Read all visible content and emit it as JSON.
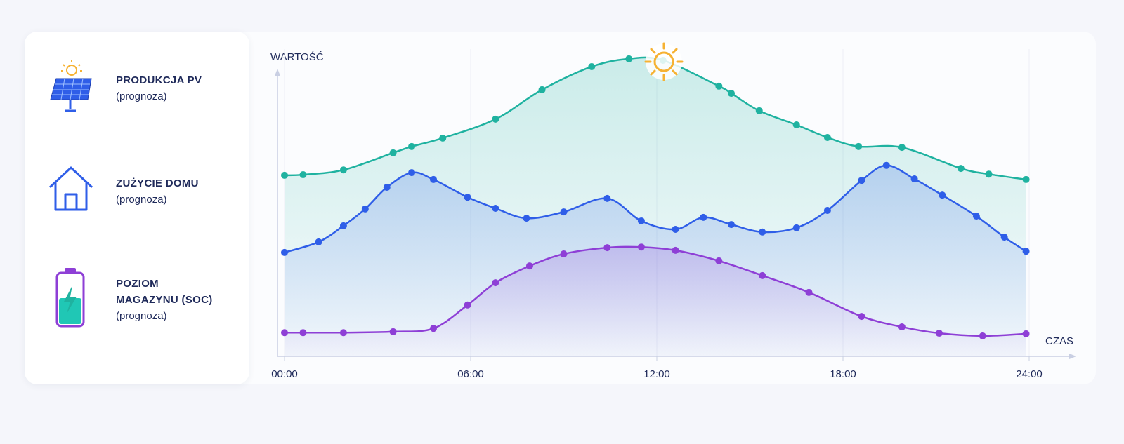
{
  "chart_data": {
    "type": "line",
    "ylabel": "WARTOŚĆ",
    "xlabel": "CZAS",
    "xlim": [
      0,
      24
    ],
    "ylim": [
      0,
      100
    ],
    "xticks": [
      {
        "value": 0,
        "label": "00:00"
      },
      {
        "value": 6,
        "label": "06:00"
      },
      {
        "value": 12,
        "label": "12:00"
      },
      {
        "value": 18,
        "label": "18:00"
      },
      {
        "value": 24,
        "label": "24:00"
      }
    ],
    "grid": true,
    "series": [
      {
        "name": "PRODUKCJA PV",
        "note": "(prognoza)",
        "color": "#1fb2a0",
        "x": [
          0,
          0.6,
          1.9,
          3.5,
          4.1,
          5.1,
          6.8,
          8.3,
          9.9,
          11.1,
          12.2,
          14.0,
          14.4,
          15.3,
          16.5,
          17.5,
          18.5,
          19.9,
          21.8,
          22.7,
          23.9
        ],
        "values": [
          60.3,
          60.5,
          62.1,
          67.8,
          69.9,
          72.7,
          79.0,
          88.8,
          96.5,
          99.1,
          98.6,
          90.0,
          87.6,
          81.8,
          77.1,
          72.9,
          69.9,
          69.6,
          62.6,
          60.7,
          58.9
        ]
      },
      {
        "name": "ZUŻYCIE DOMU",
        "note": "(prognoza)",
        "color": "#2f5ee8",
        "x": [
          0,
          1.1,
          1.9,
          2.6,
          3.3,
          4.1,
          4.8,
          5.9,
          6.8,
          7.8,
          9.0,
          10.4,
          11.5,
          12.6,
          13.5,
          14.4,
          15.4,
          16.5,
          17.5,
          18.6,
          19.4,
          20.3,
          21.2,
          22.3,
          23.2,
          23.9
        ],
        "values": [
          34.6,
          38.1,
          43.5,
          49.1,
          56.3,
          61.2,
          58.9,
          53.0,
          49.3,
          46.0,
          48.1,
          52.6,
          45.1,
          42.3,
          46.3,
          43.9,
          41.4,
          42.8,
          48.6,
          58.6,
          63.6,
          59.1,
          53.7,
          46.7,
          39.7,
          35.0
        ]
      },
      {
        "name": "POZIOM MAGAZYNU (SOC)",
        "note": "(prognoza)",
        "color": "#8e3fd6",
        "x": [
          0,
          0.6,
          1.9,
          3.5,
          4.8,
          5.9,
          6.8,
          7.9,
          9.0,
          10.4,
          11.5,
          12.6,
          14.0,
          15.4,
          16.9,
          18.6,
          19.9,
          21.1,
          22.5,
          23.9
        ],
        "values": [
          7.9,
          7.9,
          7.9,
          8.2,
          9.3,
          17.1,
          24.5,
          30.1,
          34.1,
          36.2,
          36.4,
          35.3,
          31.8,
          26.9,
          21.3,
          13.3,
          9.8,
          7.7,
          6.8,
          7.5
        ]
      }
    ]
  }
}
